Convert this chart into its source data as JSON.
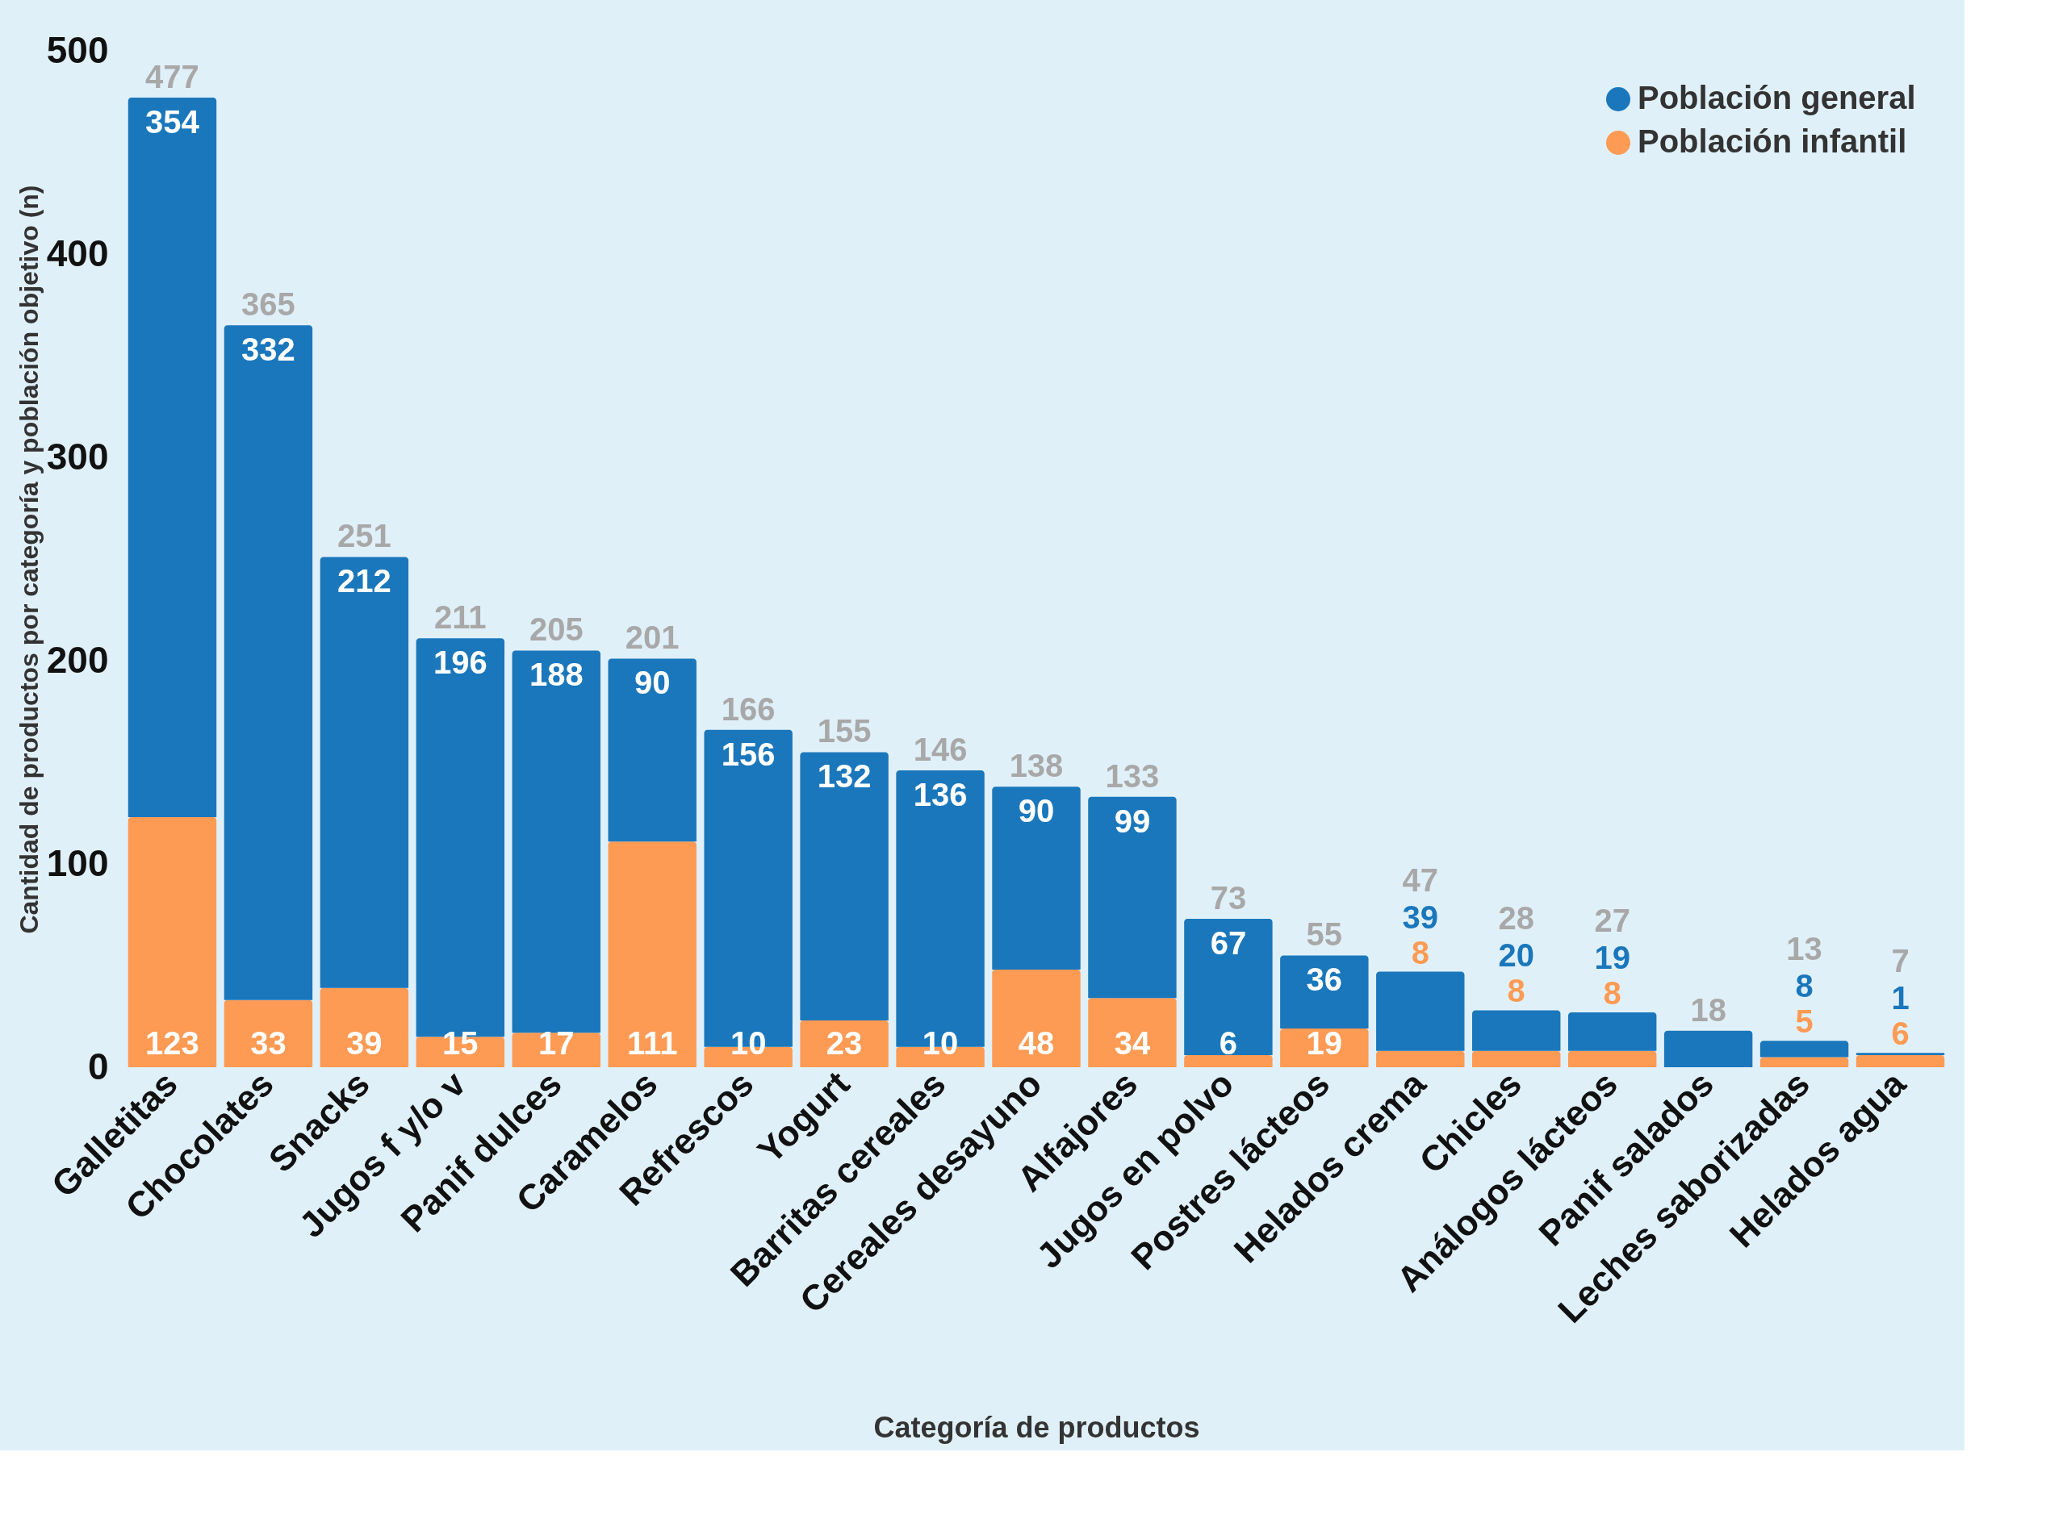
{
  "chart_data": {
    "type": "bar",
    "stacked": true,
    "xlabel": "Categoría de productos",
    "ylabel": "Cantidad de productos por categoría y población objetivo (n)",
    "categories": [
      "Galletitas",
      "Chocolates",
      "Snacks",
      "Jugos f y/o v",
      "Panif dulces",
      "Caramelos",
      "Refrescos",
      "Yogurt",
      "Barritas cereales",
      "Cereales desayuno",
      "Alfajores",
      "Jugos en polvo",
      "Postres lácteos",
      "Helados crema",
      "Chicles",
      "Análogos lácteos",
      "Panif salados",
      "Leches saborizadas",
      "Helados agua"
    ],
    "series": [
      {
        "name": "Población infantil",
        "color": "#fd9a53",
        "values": [
          123,
          33,
          39,
          15,
          17,
          111,
          10,
          23,
          10,
          48,
          34,
          6,
          19,
          8,
          8,
          8,
          null,
          5,
          6
        ],
        "value_labels": [
          "123",
          "33",
          "39",
          "15",
          "17",
          "111",
          "10",
          "23",
          "10",
          "48",
          "34",
          "6",
          "19",
          "8",
          "8",
          "8",
          null,
          "5",
          "6"
        ]
      },
      {
        "name": "Población general",
        "color": "#1a77bc",
        "values": [
          354,
          332,
          212,
          196,
          188,
          90,
          156,
          132,
          136,
          90,
          99,
          67,
          36,
          39,
          20,
          19,
          18,
          8,
          1
        ],
        "value_labels": [
          "354",
          "332",
          "212",
          "196",
          "188",
          "90",
          "156",
          "132",
          "136",
          "90",
          "99",
          "67",
          "36",
          "39",
          "20",
          "19",
          null,
          "8",
          "1"
        ]
      }
    ],
    "totals": [
      "477",
      "365",
      "251",
      "211",
      "205",
      "201",
      "166",
      "155",
      "146",
      "138",
      "133",
      "73",
      "55",
      "47",
      "28",
      "27",
      "18",
      "13",
      "7"
    ],
    "ylim": [
      0,
      500
    ],
    "yticks": [
      0,
      100,
      200,
      300,
      400,
      500
    ],
    "grid": false,
    "legend": "top right"
  }
}
